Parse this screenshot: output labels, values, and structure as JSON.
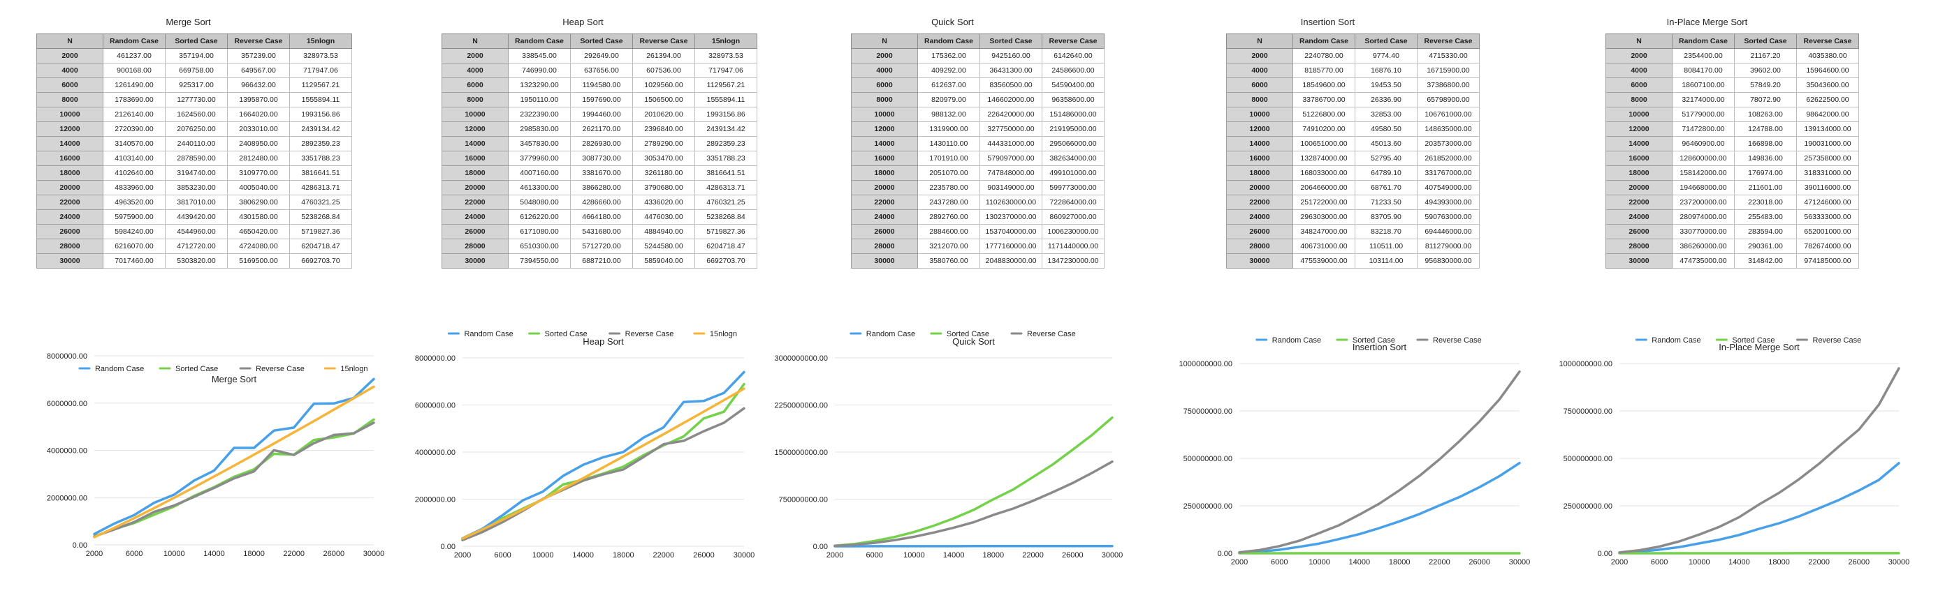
{
  "colors": {
    "random": "#47a0e8",
    "sorted": "#74d24a",
    "reverse": "#8a8a8a",
    "nlogn": "#f5b53b",
    "grid": "#e2e2e2"
  },
  "columns": {
    "n": "N",
    "random": "Random Case",
    "sorted": "Sorted Case",
    "reverse": "Reverse Case",
    "nlogn": "15nlogn"
  },
  "n_values": [
    "2000",
    "4000",
    "6000",
    "8000",
    "10000",
    "12000",
    "14000",
    "16000",
    "18000",
    "20000",
    "22000",
    "24000",
    "26000",
    "28000",
    "30000"
  ],
  "chart_data": [
    {
      "type": "line",
      "title": "Merge Sort",
      "legend": "top",
      "x": [
        2000,
        4000,
        6000,
        8000,
        10000,
        12000,
        14000,
        16000,
        18000,
        20000,
        22000,
        24000,
        26000,
        28000,
        30000
      ],
      "xticks": [
        "2000",
        "6000",
        "10000",
        "14000",
        "18000",
        "22000",
        "26000",
        "30000"
      ],
      "ylim": [
        0,
        8000000
      ],
      "yticks": [
        "0.00",
        "2000000.00",
        "4000000.00",
        "6000000.00",
        "8000000.00"
      ],
      "series": [
        {
          "name": "Random Case",
          "key": "random",
          "values": [
            461237,
            900168,
            1261490,
            1783690,
            2126140,
            2720390,
            3140570,
            4103140,
            4102640,
            4833960,
            4963520,
            5975900,
            5984240,
            6216070,
            7017460
          ],
          "labels": [
            "461237.00",
            "900168.00",
            "1261490.00",
            "1783690.00",
            "2126140.00",
            "2720390.00",
            "3140570.00",
            "4103140.00",
            "4102640.00",
            "4833960.00",
            "4963520.00",
            "5975900.00",
            "5984240.00",
            "6216070.00",
            "7017460.00"
          ]
        },
        {
          "name": "Sorted Case",
          "key": "sorted",
          "values": [
            357194,
            669758,
            925317,
            1277730,
            1624560,
            2076250,
            2440110,
            2878590,
            3194740,
            3853230,
            3817010,
            4439420,
            4544960,
            4712720,
            5303820
          ],
          "labels": [
            "357194.00",
            "669758.00",
            "925317.00",
            "1277730.00",
            "1624560.00",
            "2076250.00",
            "2440110.00",
            "2878590.00",
            "3194740.00",
            "3853230.00",
            "3817010.00",
            "4439420.00",
            "4544960.00",
            "4712720.00",
            "5303820.00"
          ]
        },
        {
          "name": "Reverse Case",
          "key": "reverse",
          "values": [
            357239,
            649567,
            966432,
            1395870,
            1664020,
            2033010,
            2408950,
            2812480,
            3109770,
            4005040,
            3806290,
            4301580,
            4650420,
            4724080,
            5169500
          ],
          "labels": [
            "357239.00",
            "649567.00",
            "966432.00",
            "1395870.00",
            "1664020.00",
            "2033010.00",
            "2408950.00",
            "2812480.00",
            "3109770.00",
            "4005040.00",
            "3806290.00",
            "4301580.00",
            "4650420.00",
            "4724080.00",
            "5169500.00"
          ]
        },
        {
          "name": "15nlogn",
          "key": "nlogn",
          "values": [
            328973.53,
            717947.06,
            1129567.21,
            1555894.11,
            1993156.86,
            2439134.42,
            2892359.23,
            3351788.23,
            3816641.51,
            4286313.71,
            4760321.25,
            5238268.84,
            5719827.36,
            6204718.47,
            6692703.7
          ],
          "labels": [
            "328973.53",
            "717947.06",
            "1129567.21",
            "1555894.11",
            "1993156.86",
            "2439134.42",
            "2892359.23",
            "3351788.23",
            "3816641.51",
            "4286313.71",
            "4760321.25",
            "5238268.84",
            "5719827.36",
            "6204718.47",
            "6692703.70"
          ]
        }
      ]
    },
    {
      "type": "line",
      "title": "Heap Sort",
      "legend": "top",
      "x": [
        2000,
        4000,
        6000,
        8000,
        10000,
        12000,
        14000,
        16000,
        18000,
        20000,
        22000,
        24000,
        26000,
        28000,
        30000
      ],
      "xticks": [
        "2000",
        "6000",
        "10000",
        "14000",
        "18000",
        "22000",
        "26000",
        "30000"
      ],
      "ylim": [
        0,
        8000000
      ],
      "yticks": [
        "0.00",
        "2000000.00",
        "4000000.00",
        "6000000.00",
        "8000000.00"
      ],
      "series": [
        {
          "name": "Random Case",
          "key": "random",
          "values": [
            338545,
            746990,
            1323290,
            1950110,
            2322390,
            2985830,
            3457830,
            3779960,
            4007160,
            4613300,
            5048080,
            6126220,
            6171080,
            6510300,
            7394550
          ],
          "labels": [
            "338545.00",
            "746990.00",
            "1323290.00",
            "1950110.00",
            "2322390.00",
            "2985830.00",
            "3457830.00",
            "3779960.00",
            "4007160.00",
            "4613300.00",
            "5048080.00",
            "6126220.00",
            "6171080.00",
            "6510300.00",
            "7394550.00"
          ]
        },
        {
          "name": "Sorted Case",
          "key": "sorted",
          "values": [
            292649,
            637656,
            1194580,
            1597690,
            1994460,
            2621170,
            2826930,
            3087730,
            3381670,
            3866280,
            4286660,
            4664180,
            5431680,
            5712720,
            6887210
          ],
          "labels": [
            "292649.00",
            "637656.00",
            "1194580.00",
            "1597690.00",
            "1994460.00",
            "2621170.00",
            "2826930.00",
            "3087730.00",
            "3381670.00",
            "3866280.00",
            "4286660.00",
            "4664180.00",
            "5431680.00",
            "5712720.00",
            "6887210.00"
          ]
        },
        {
          "name": "Reverse Case",
          "key": "reverse",
          "values": [
            261394,
            607536,
            1029560,
            1506500,
            2010620,
            2396840,
            2789290,
            3053470,
            3261180,
            3790680,
            4336020,
            4476030,
            4884940,
            5244580,
            5859040
          ],
          "labels": [
            "261394.00",
            "607536.00",
            "1029560.00",
            "1506500.00",
            "2010620.00",
            "2396840.00",
            "2789290.00",
            "3053470.00",
            "3261180.00",
            "3790680.00",
            "4336020.00",
            "4476030.00",
            "4884940.00",
            "5244580.00",
            "5859040.00"
          ]
        },
        {
          "name": "15nlogn",
          "key": "nlogn",
          "values": [
            328973.53,
            717947.06,
            1129567.21,
            1555894.11,
            1993156.86,
            2439134.42,
            2892359.23,
            3351788.23,
            3816641.51,
            4286313.71,
            4760321.25,
            5238268.84,
            5719827.36,
            6204718.47,
            6692703.7
          ],
          "labels": [
            "328973.53",
            "717947.06",
            "1129567.21",
            "1555894.11",
            "1993156.86",
            "2439134.42",
            "2892359.23",
            "3351788.23",
            "3816641.51",
            "4286313.71",
            "4760321.25",
            "5238268.84",
            "5719827.36",
            "6204718.47",
            "6692703.70"
          ]
        }
      ]
    },
    {
      "type": "line",
      "title": "Quick Sort",
      "legend": "top",
      "x": [
        2000,
        4000,
        6000,
        8000,
        10000,
        12000,
        14000,
        16000,
        18000,
        20000,
        22000,
        24000,
        26000,
        28000,
        30000
      ],
      "xticks": [
        "2000",
        "6000",
        "10000",
        "14000",
        "18000",
        "22000",
        "26000",
        "30000"
      ],
      "ylim": [
        0,
        3000000000
      ],
      "yticks": [
        "0.00",
        "750000000.00",
        "1500000000.00",
        "2250000000.00",
        "3000000000.00"
      ],
      "series": [
        {
          "name": "Random Case",
          "key": "random",
          "values": [
            175362,
            409292,
            612637,
            820979,
            988132,
            1319900,
            1430110,
            1701910,
            2051070,
            2235780,
            2437280,
            2892760,
            2884600,
            3212070,
            3580760
          ],
          "labels": [
            "175362.00",
            "409292.00",
            "612637.00",
            "820979.00",
            "988132.00",
            "1319900.00",
            "1430110.00",
            "1701910.00",
            "2051070.00",
            "2235780.00",
            "2437280.00",
            "2892760.00",
            "2884600.00",
            "3212070.00",
            "3580760.00"
          ]
        },
        {
          "name": "Sorted Case",
          "key": "sorted",
          "values": [
            9425160,
            36431300,
            83560500,
            146602000,
            226420000,
            327750000,
            444331000,
            579097000,
            747848000,
            903149000,
            1102630000,
            1302370000,
            1537040000,
            1777160000,
            2048830000
          ],
          "labels": [
            "9425160.00",
            "36431300.00",
            "83560500.00",
            "146602000.00",
            "226420000.00",
            "327750000.00",
            "444331000.00",
            "579097000.00",
            "747848000.00",
            "903149000.00",
            "1102630000.00",
            "1302370000.00",
            "1537040000.00",
            "1777160000.00",
            "2048830000.00"
          ]
        },
        {
          "name": "Reverse Case",
          "key": "reverse",
          "values": [
            6142640,
            24586600,
            54590400,
            96358600,
            151486000,
            219195000,
            295066000,
            382634000,
            499101000,
            599773000,
            722864000,
            860927000,
            1006230000,
            1171440000,
            1347230000
          ],
          "labels": [
            "6142640.00",
            "24586600.00",
            "54590400.00",
            "96358600.00",
            "151486000.00",
            "219195000.00",
            "295066000.00",
            "382634000.00",
            "499101000.00",
            "599773000.00",
            "722864000.00",
            "860927000.00",
            "1006230000.00",
            "1171440000.00",
            "1347230000.00"
          ]
        }
      ]
    },
    {
      "type": "line",
      "title": "Insertion Sort",
      "legend": "top",
      "x": [
        2000,
        4000,
        6000,
        8000,
        10000,
        12000,
        14000,
        16000,
        18000,
        20000,
        22000,
        24000,
        26000,
        28000,
        30000
      ],
      "xticks": [
        "2000",
        "6000",
        "10000",
        "14000",
        "18000",
        "22000",
        "26000",
        "30000"
      ],
      "ylim": [
        0,
        1000000000
      ],
      "yticks": [
        "0.00",
        "250000000.00",
        "500000000.00",
        "750000000.00",
        "1000000000.00"
      ],
      "series": [
        {
          "name": "Random Case",
          "key": "random",
          "values": [
            2240780,
            8185770,
            18549600,
            33786700,
            51226800,
            74910200,
            100651000,
            132874000,
            168033000,
            206466000,
            251722000,
            296303000,
            348247000,
            406731000,
            475539000
          ],
          "labels": [
            "2240780.00",
            "8185770.00",
            "18549600.00",
            "33786700.00",
            "51226800.00",
            "74910200.00",
            "100651000.00",
            "132874000.00",
            "168033000.00",
            "206466000.00",
            "251722000.00",
            "296303000.00",
            "348247000.00",
            "406731000.00",
            "475539000.00"
          ]
        },
        {
          "name": "Sorted Case",
          "key": "sorted",
          "values": [
            9774.4,
            16876.1,
            19453.5,
            26336.9,
            32853,
            49580.5,
            45013.6,
            52795.4,
            64789.1,
            68761.7,
            71233.5,
            83705.9,
            83218.7,
            110511,
            103114
          ],
          "labels": [
            "9774.40",
            "16876.10",
            "19453.50",
            "26336.90",
            "32853.00",
            "49580.50",
            "45013.60",
            "52795.40",
            "64789.10",
            "68761.70",
            "71233.50",
            "83705.90",
            "83218.70",
            "110511.00",
            "103114.00"
          ]
        },
        {
          "name": "Reverse Case",
          "key": "reverse",
          "values": [
            4715330,
            16715900,
            37386800,
            65798900,
            106761000,
            148635000,
            203573000,
            261852000,
            331767000,
            407549000,
            494393000,
            590763000,
            694446000,
            811279000,
            956830000
          ],
          "labels": [
            "4715330.00",
            "16715900.00",
            "37386800.00",
            "65798900.00",
            "106761000.00",
            "148635000.00",
            "203573000.00",
            "261852000.00",
            "331767000.00",
            "407549000.00",
            "494393000.00",
            "590763000.00",
            "694446000.00",
            "811279000.00",
            "956830000.00"
          ]
        }
      ]
    },
    {
      "type": "line",
      "title": "In-Place Merge Sort",
      "legend": "top",
      "x": [
        2000,
        4000,
        6000,
        8000,
        10000,
        12000,
        14000,
        16000,
        18000,
        20000,
        22000,
        24000,
        26000,
        28000,
        30000
      ],
      "xticks": [
        "2000",
        "6000",
        "10000",
        "14000",
        "18000",
        "22000",
        "26000",
        "30000"
      ],
      "ylim": [
        0,
        1000000000
      ],
      "yticks": [
        "0.00",
        "250000000.00",
        "500000000.00",
        "750000000.00",
        "1000000000.00"
      ],
      "series": [
        {
          "name": "Random Case",
          "key": "random",
          "values": [
            2354400,
            8084170,
            18607100,
            32174000,
            51779000,
            71472800,
            96460900,
            128600000,
            158142000,
            194668000,
            237200000,
            280974000,
            330770000,
            386260000,
            474735000
          ],
          "labels": [
            "2354400.00",
            "8084170.00",
            "18607100.00",
            "32174000.00",
            "51779000.00",
            "71472800.00",
            "96460900.00",
            "128600000.00",
            "158142000.00",
            "194668000.00",
            "237200000.00",
            "280974000.00",
            "330770000.00",
            "386260000.00",
            "474735000.00"
          ]
        },
        {
          "name": "Sorted Case",
          "key": "sorted",
          "values": [
            21167.2,
            39602,
            57849.2,
            78072.9,
            108263,
            124788,
            166898,
            149836,
            176974,
            211601,
            223018,
            255483,
            283594,
            290361,
            314842
          ],
          "labels": [
            "21167.20",
            "39602.00",
            "57849.20",
            "78072.90",
            "108263.00",
            "124788.00",
            "166898.00",
            "149836.00",
            "176974.00",
            "211601.00",
            "223018.00",
            "255483.00",
            "283594.00",
            "290361.00",
            "314842.00"
          ]
        },
        {
          "name": "Reverse Case",
          "key": "reverse",
          "values": [
            4035380,
            15964600,
            35043600,
            62622500,
            98642000,
            139134000,
            190031000,
            257358000,
            318331000,
            390116000,
            471246000,
            563333000,
            652001000,
            782674000,
            974185000
          ],
          "labels": [
            "4035380.00",
            "15964600.00",
            "35043600.00",
            "62622500.00",
            "98642000.00",
            "139134000.00",
            "190031000.00",
            "257358000.00",
            "318331000.00",
            "390116000.00",
            "471246000.00",
            "563333000.00",
            "652001000.00",
            "782674000.00",
            "974185000.00"
          ]
        }
      ]
    }
  ]
}
